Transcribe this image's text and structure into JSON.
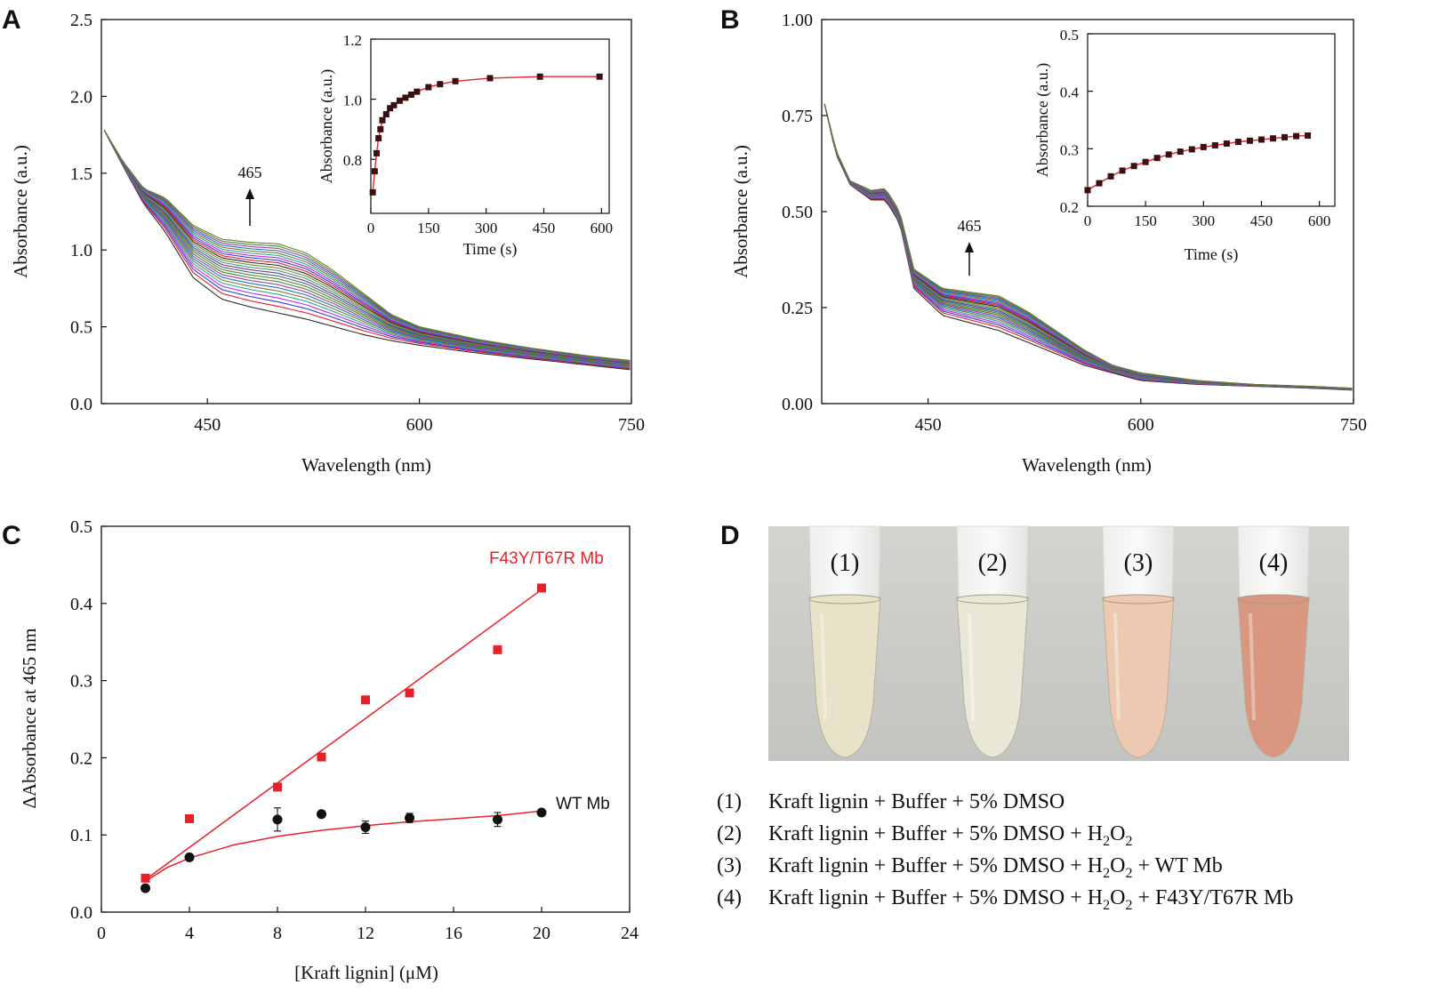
{
  "panels": {
    "A": {
      "label": "A"
    },
    "B": {
      "label": "B"
    },
    "C": {
      "label": "C"
    },
    "D": {
      "label": "D"
    }
  },
  "chart_data": [
    {
      "id": "A",
      "type": "line",
      "title": "",
      "xlabel": "Wavelength (nm)",
      "ylabel": "Absorbance (a.u.)",
      "xlim": [
        375,
        750
      ],
      "ylim": [
        0.0,
        2.5
      ],
      "xticks": [
        450,
        600,
        750
      ],
      "yticks": [
        0.0,
        0.5,
        1.0,
        1.5,
        2.0,
        2.5
      ],
      "ytick_labels": [
        "0.0",
        "0.5",
        "1.0",
        "1.5",
        "2.0",
        "2.5"
      ],
      "annotation": {
        "text": "465",
        "x": 475,
        "arrow": "up"
      },
      "base_series": {
        "x": [
          377,
          390,
          405,
          420,
          440,
          460,
          480,
          500,
          520,
          540,
          560,
          580,
          600,
          640,
          680,
          720,
          750
        ],
        "y": [
          1.78,
          1.55,
          1.3,
          1.12,
          0.82,
          0.68,
          0.63,
          0.59,
          0.55,
          0.5,
          0.45,
          0.41,
          0.38,
          0.33,
          0.29,
          0.25,
          0.22
        ]
      },
      "top_series": {
        "x": [
          377,
          390,
          405,
          420,
          440,
          460,
          480,
          500,
          520,
          540,
          560,
          580,
          600,
          640,
          680,
          720,
          750
        ],
        "y": [
          1.78,
          1.58,
          1.4,
          1.34,
          1.16,
          1.07,
          1.05,
          1.04,
          0.98,
          0.86,
          0.72,
          0.58,
          0.5,
          0.42,
          0.36,
          0.31,
          0.28
        ]
      },
      "series_count": 24,
      "inset": {
        "type": "scatter",
        "xlabel": "Time (s)",
        "ylabel": "Absorbance (a.u.)",
        "xlim": [
          0,
          620
        ],
        "ylim": [
          0.62,
          1.2
        ],
        "xticks": [
          0,
          150,
          300,
          450,
          600
        ],
        "yticks": [
          0.8,
          1.0,
          1.2
        ],
        "ytick_labels": [
          "0.8",
          "1.0",
          "1.2"
        ],
        "x": [
          5,
          10,
          15,
          20,
          25,
          30,
          40,
          50,
          60,
          75,
          90,
          105,
          120,
          150,
          180,
          220,
          310,
          440,
          595
        ],
        "y": [
          0.69,
          0.76,
          0.82,
          0.87,
          0.9,
          0.93,
          0.95,
          0.97,
          0.98,
          0.995,
          1.005,
          1.015,
          1.025,
          1.04,
          1.05,
          1.06,
          1.07,
          1.075,
          1.075
        ]
      }
    },
    {
      "id": "B",
      "type": "line",
      "title": "",
      "xlabel": "Wavelength (nm)",
      "ylabel": "Absorbance (a.u.)",
      "xlim": [
        375,
        750
      ],
      "ylim": [
        0.0,
        1.0
      ],
      "xticks": [
        450,
        600,
        750
      ],
      "yticks": [
        0.0,
        0.25,
        0.5,
        0.75,
        1.0
      ],
      "ytick_labels": [
        "0.00",
        "0.25",
        "0.50",
        "0.75",
        "1.00"
      ],
      "annotation": {
        "text": "465",
        "x": 475,
        "arrow": "up"
      },
      "base_series": {
        "x": [
          377,
          385,
          395,
          410,
          420,
          430,
          440,
          460,
          480,
          500,
          520,
          540,
          560,
          580,
          600,
          640,
          680,
          720,
          750
        ],
        "y": [
          0.78,
          0.65,
          0.57,
          0.53,
          0.53,
          0.47,
          0.3,
          0.23,
          0.21,
          0.19,
          0.16,
          0.13,
          0.1,
          0.08,
          0.06,
          0.05,
          0.045,
          0.04,
          0.035
        ]
      },
      "top_series": {
        "x": [
          377,
          385,
          395,
          410,
          420,
          430,
          440,
          460,
          480,
          500,
          520,
          540,
          560,
          580,
          600,
          640,
          680,
          720,
          750
        ],
        "y": [
          0.78,
          0.66,
          0.58,
          0.555,
          0.56,
          0.5,
          0.35,
          0.3,
          0.29,
          0.28,
          0.24,
          0.19,
          0.14,
          0.1,
          0.08,
          0.06,
          0.05,
          0.045,
          0.04
        ]
      },
      "series_count": 24,
      "inset": {
        "type": "scatter",
        "xlabel": "Time (s)",
        "ylabel": "Absorbance (a.u.)",
        "xlim": [
          0,
          640
        ],
        "ylim": [
          0.2,
          0.5
        ],
        "xticks": [
          0,
          150,
          300,
          450,
          600
        ],
        "yticks": [
          0.2,
          0.3,
          0.4,
          0.5
        ],
        "ytick_labels": [
          "0.2",
          "0.3",
          "0.4",
          "0.5"
        ],
        "x": [
          0,
          30,
          60,
          90,
          120,
          150,
          180,
          210,
          240,
          270,
          300,
          330,
          360,
          390,
          420,
          450,
          480,
          510,
          540,
          570
        ],
        "y": [
          0.228,
          0.24,
          0.252,
          0.262,
          0.27,
          0.277,
          0.284,
          0.29,
          0.295,
          0.299,
          0.303,
          0.306,
          0.309,
          0.312,
          0.314,
          0.316,
          0.318,
          0.32,
          0.322,
          0.323
        ]
      }
    },
    {
      "id": "C",
      "type": "scatter",
      "title": "",
      "xlabel": "[Kraft lignin] (μM)",
      "ylabel": "ΔAbsorbance at 465 nm",
      "xlim": [
        0,
        24
      ],
      "ylim": [
        0.0,
        0.5
      ],
      "xticks": [
        0,
        4,
        8,
        12,
        16,
        20,
        24
      ],
      "yticks": [
        0.0,
        0.1,
        0.2,
        0.3,
        0.4,
        0.5
      ],
      "ytick_labels": [
        "0.0",
        "0.1",
        "0.2",
        "0.3",
        "0.4",
        "0.5"
      ],
      "series": [
        {
          "name": "F43Y/T67R Mb",
          "color": "#e8202a",
          "marker": "square",
          "x": [
            2,
            4,
            8,
            10,
            12,
            14,
            18,
            20
          ],
          "y": [
            0.044,
            0.121,
            0.162,
            0.201,
            0.275,
            0.284,
            0.34,
            0.42
          ],
          "fit": "linear",
          "fit_points": {
            "x": [
              2,
              20
            ],
            "y": [
              0.042,
              0.418
            ]
          }
        },
        {
          "name": "WT Mb",
          "color": "#111111",
          "marker": "circle",
          "x": [
            2,
            4,
            8,
            10,
            12,
            14,
            18,
            20
          ],
          "y": [
            0.031,
            0.071,
            0.12,
            0.127,
            0.11,
            0.122,
            0.12,
            0.129
          ],
          "yerr": [
            0.003,
            0.004,
            0.015,
            0.004,
            0.008,
            0.006,
            0.009,
            0.003
          ],
          "fit": "hyperbolic",
          "fit_points": {
            "x": [
              2,
              3,
              4,
              6,
              8,
              10,
              12,
              14,
              16,
              18,
              20
            ],
            "y": [
              0.04,
              0.058,
              0.07,
              0.087,
              0.098,
              0.106,
              0.112,
              0.117,
              0.121,
              0.125,
              0.131
            ]
          }
        }
      ]
    }
  ],
  "panelD": {
    "tube_labels": [
      "(1)",
      "(2)",
      "(3)",
      "(4)"
    ],
    "tube_colors": [
      "#e8e2c8",
      "#e9e8d6",
      "#ecc9b0",
      "#d99780"
    ],
    "photo_bg": "#c9c9c5",
    "legend": [
      {
        "num": "(1)",
        "text": "Kraft lignin + Buffer + 5% DMSO",
        "sub": []
      },
      {
        "num": "(2)",
        "text": "Kraft lignin + Buffer + 5% DMSO + H",
        "sub": [
          "2",
          "O",
          "2"
        ],
        "tail": ""
      },
      {
        "num": "(3)",
        "text": "Kraft lignin + Buffer + 5% DMSO + H",
        "sub": [
          "2",
          "O",
          "2"
        ],
        "tail": " + WT Mb"
      },
      {
        "num": "(4)",
        "text": "Kraft lignin + Buffer + 5% DMSO + H",
        "sub": [
          "2",
          "O",
          "2"
        ],
        "tail": " + F43Y/T67R Mb"
      }
    ]
  },
  "colors": {
    "fit": "#e8202a",
    "marker_dark": "#111111",
    "axis": "#111111",
    "curve_palette": [
      "#2b2b2b",
      "#e8202a",
      "#2a3fd6",
      "#c02ad6",
      "#2aa6a0",
      "#7a7a22",
      "#1f6ed4",
      "#a23a9a",
      "#3a8a3a",
      "#6a7a2a",
      "#3a6a8a",
      "#6a3a9a",
      "#4a9a6a",
      "#7a8a3a"
    ]
  }
}
